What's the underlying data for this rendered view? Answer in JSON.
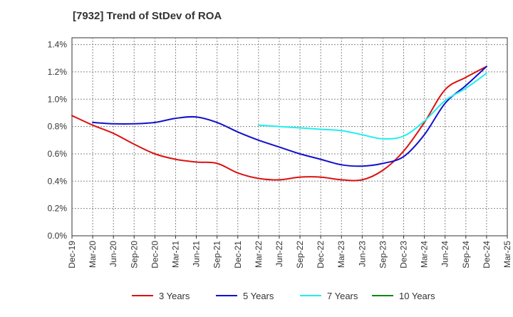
{
  "chart_data": {
    "type": "line",
    "title": "[7932]  Trend of StDev of ROA",
    "x_labels": [
      "Dec-19",
      "Mar-20",
      "Jun-20",
      "Sep-20",
      "Dec-20",
      "Mar-21",
      "Jun-21",
      "Sep-21",
      "Dec-21",
      "Mar-22",
      "Jun-22",
      "Sep-22",
      "Dec-22",
      "Mar-23",
      "Jun-23",
      "Sep-23",
      "Dec-23",
      "Mar-24",
      "Jun-24",
      "Sep-24",
      "Dec-24",
      "Mar-25"
    ],
    "y_ticks": [
      "0.0%",
      "0.2%",
      "0.4%",
      "0.6%",
      "0.8%",
      "1.0%",
      "1.2%",
      "1.4%"
    ],
    "ylim": [
      0,
      1.45
    ],
    "grid": true,
    "legend_position": "bottom",
    "series": [
      {
        "name": "3 Years",
        "color": "#dd1111",
        "x_index": [
          0,
          1,
          2,
          3,
          4,
          5,
          6,
          7,
          8,
          9,
          10,
          11,
          12,
          13,
          14,
          15,
          16,
          17,
          18,
          19,
          20
        ],
        "values": [
          0.88,
          0.81,
          0.75,
          0.67,
          0.6,
          0.56,
          0.54,
          0.53,
          0.46,
          0.42,
          0.41,
          0.43,
          0.43,
          0.41,
          0.41,
          0.48,
          0.62,
          0.83,
          1.07,
          1.16,
          1.24
        ]
      },
      {
        "name": "5 Years",
        "color": "#1111cc",
        "x_index": [
          1,
          2,
          3,
          4,
          5,
          6,
          7,
          8,
          9,
          10,
          11,
          12,
          13,
          14,
          15,
          16,
          17,
          18,
          19,
          20
        ],
        "values": [
          0.83,
          0.82,
          0.82,
          0.83,
          0.86,
          0.87,
          0.83,
          0.76,
          0.7,
          0.65,
          0.6,
          0.56,
          0.52,
          0.51,
          0.53,
          0.58,
          0.74,
          0.97,
          1.1,
          1.24
        ]
      },
      {
        "name": "7 Years",
        "color": "#22eeee",
        "x_index": [
          9,
          10,
          11,
          12,
          13,
          14,
          15,
          16,
          17,
          18,
          19,
          20
        ],
        "values": [
          0.81,
          0.8,
          0.79,
          0.78,
          0.77,
          0.74,
          0.71,
          0.73,
          0.84,
          0.99,
          1.08,
          1.19
        ]
      },
      {
        "name": "10 Years",
        "color": "#118811",
        "x_index": [],
        "values": []
      }
    ]
  }
}
